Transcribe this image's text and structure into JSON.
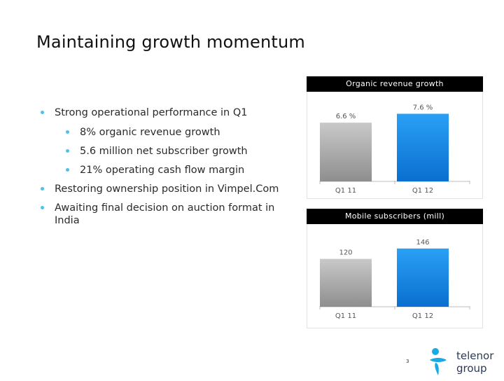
{
  "slide": {
    "title": "Maintaining growth momentum",
    "page_number": "3",
    "logo_text_line1": "telenor",
    "logo_text_line2": "group"
  },
  "bullets": [
    {
      "text": "Strong operational performance in Q1",
      "level": 1
    },
    {
      "text": "8% organic revenue growth",
      "level": 2
    },
    {
      "text": "5.6 million net subscriber growth",
      "level": 2
    },
    {
      "text": "21% operating cash flow margin",
      "level": 2
    },
    {
      "text": "Restoring ownership position in Vimpel.Com",
      "level": 1
    },
    {
      "text": "Awaiting final decision on auction format in India",
      "level": 1
    }
  ],
  "chart_data": [
    {
      "type": "bar",
      "title": "Organic revenue growth",
      "categories": [
        "Q1 11",
        "Q1 12"
      ],
      "values": [
        6.6,
        7.6
      ],
      "value_labels": [
        "6.6 %",
        "7.6 %"
      ],
      "colors": [
        "#a8a8a8",
        "#1a8fe8"
      ],
      "ylim": [
        0,
        8.5
      ],
      "grid": false,
      "legend": "none"
    },
    {
      "type": "bar",
      "title": "Mobile  subscribers (mill)",
      "categories": [
        "Q1 11",
        "Q1 12"
      ],
      "values": [
        120,
        146
      ],
      "value_labels": [
        "120",
        "146"
      ],
      "colors": [
        "#a8a8a8",
        "#1a8fe8"
      ],
      "ylim": [
        0,
        172
      ],
      "grid": false,
      "legend": "none"
    }
  ]
}
